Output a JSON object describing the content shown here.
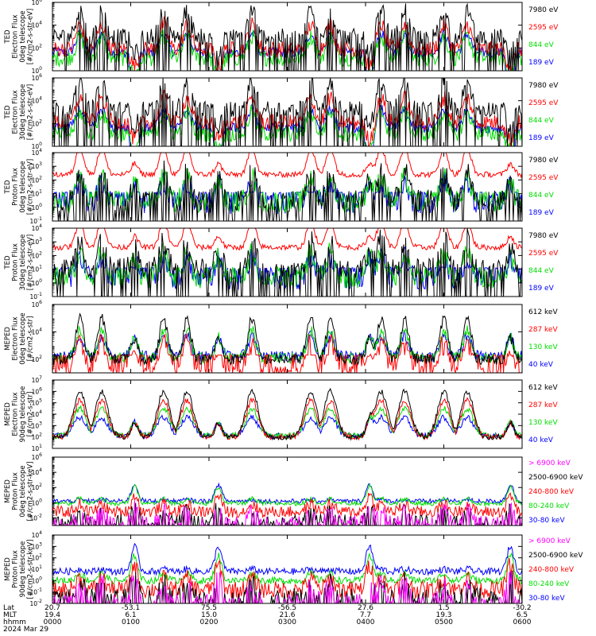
{
  "chart_data": {
    "type": "line",
    "time_axis": {
      "row_labels": [
        "Lat",
        "MLT",
        "hhmm"
      ],
      "date": "2024 Mar 29",
      "ticks": [
        {
          "lat": "20.7",
          "mlt": "19.4",
          "hhmm": "0000"
        },
        {
          "lat": "-53.1",
          "mlt": "6.1",
          "hhmm": "0100"
        },
        {
          "lat": "75.5",
          "mlt": "15.0",
          "hhmm": "0200"
        },
        {
          "lat": "-56.5",
          "mlt": "21.6",
          "hhmm": "0300"
        },
        {
          "lat": "27.6",
          "mlt": "7.7",
          "hhmm": "0400"
        },
        {
          "lat": "1.5",
          "mlt": "19.3",
          "hhmm": "0500"
        },
        {
          "lat": "-30.2",
          "mlt": "6.5",
          "hhmm": "0600"
        }
      ]
    },
    "panels": [
      {
        "ylabel": [
          "TED",
          "Electron Flux",
          "0deg telescope",
          "[#/cm2-s-str-eV]"
        ],
        "ylim_exp": [
          0,
          6
        ],
        "tick_exps": [
          0,
          2,
          4,
          6
        ],
        "legend": [
          {
            "label": "7980 eV",
            "color": "#000000"
          },
          {
            "label": "2595 eV",
            "color": "#ff0000"
          },
          {
            "label": "844 eV",
            "color": "#00dd00"
          },
          {
            "label": "189 eV",
            "color": "#0000ff"
          }
        ],
        "base": [
          2.7,
          1.6,
          0.8,
          0.4
        ]
      },
      {
        "ylabel": [
          "TED",
          "Electron Flux",
          "30deg telescope",
          "[#/cm2-s-str-eV]"
        ],
        "ylim_exp": [
          0,
          6
        ],
        "tick_exps": [
          0,
          2,
          4,
          6
        ],
        "legend": [
          {
            "label": "7980 eV",
            "color": "#000000"
          },
          {
            "label": "2595 eV",
            "color": "#ff0000"
          },
          {
            "label": "844 eV",
            "color": "#00dd00"
          },
          {
            "label": "189 eV",
            "color": "#0000ff"
          }
        ],
        "base": [
          3.0,
          1.8,
          0.8,
          0.4
        ]
      },
      {
        "ylabel": [
          "TED",
          "Proton Flux",
          "0deg telescope",
          "[#/cm2-s-str-eV]"
        ],
        "ylim_exp": [
          -1,
          4
        ],
        "tick_exps": [
          -1,
          0,
          1,
          2,
          3,
          4
        ],
        "legend": [
          {
            "label": "7980 eV",
            "color": "#000000"
          },
          {
            "label": "2595 eV",
            "color": "#ff0000"
          },
          {
            "label": "844 eV",
            "color": "#00dd00"
          },
          {
            "label": "189 eV",
            "color": "#0000ff"
          }
        ],
        "base": [
          0.5,
          2.4,
          0.4,
          0.3
        ]
      },
      {
        "ylabel": [
          "TED",
          "Proton Flux",
          "30deg telescope",
          "[#/cm2-s-str-eV]"
        ],
        "ylim_exp": [
          -1,
          4
        ],
        "tick_exps": [
          -1,
          0,
          1,
          2,
          3,
          4
        ],
        "legend": [
          {
            "label": "7980 eV",
            "color": "#000000"
          },
          {
            "label": "2595 eV",
            "color": "#ff0000"
          },
          {
            "label": "844 eV",
            "color": "#00dd00"
          },
          {
            "label": "189 eV",
            "color": "#0000ff"
          }
        ],
        "base": [
          1.0,
          2.6,
          0.4,
          0.3
        ]
      },
      {
        "ylabel": [
          "MEPED",
          "Electron Flux",
          "0deg telescope",
          "[#/cm2-s-str]"
        ],
        "ylim_exp": [
          1,
          6
        ],
        "tick_exps": [
          2,
          4,
          6
        ],
        "legend": [
          {
            "label": "612 keV",
            "color": "#000000"
          },
          {
            "label": "287 keV",
            "color": "#ff0000"
          },
          {
            "label": "130 keV",
            "color": "#00dd00"
          },
          {
            "label": "40 keV",
            "color": "#0000ff"
          }
        ],
        "base": [
          2.0,
          1.1,
          2.1,
          2.2
        ]
      },
      {
        "ylabel": [
          "MEPED",
          "Electron Flux",
          "90deg telescope",
          "[#/cm2-s-str]"
        ],
        "ylim_exp": [
          1,
          7
        ],
        "tick_exps": [
          1,
          2,
          3,
          4,
          5,
          6,
          7
        ],
        "legend": [
          {
            "label": "612 keV",
            "color": "#000000"
          },
          {
            "label": "287 keV",
            "color": "#ff0000"
          },
          {
            "label": "130 keV",
            "color": "#00dd00"
          },
          {
            "label": "40 keV",
            "color": "#0000ff"
          }
        ],
        "base": [
          2.0,
          2.0,
          2.1,
          2.1
        ]
      },
      {
        "ylabel": [
          "MEPED",
          "Proton Flux",
          "0deg telescope",
          "[#/cm2-s-str-keV]"
        ],
        "ylim_exp": [
          -3,
          6
        ],
        "tick_exps": [
          -2,
          0,
          2,
          4,
          6
        ],
        "legend": [
          {
            "label": "> 6900 keV",
            "color": "#ff00ff"
          },
          {
            "label": "2500-6900 keV",
            "color": "#000000"
          },
          {
            "label": "240-800 keV",
            "color": "#ff0000"
          },
          {
            "label": "80-240 keV",
            "color": "#00dd00"
          },
          {
            "label": "30-80 keV",
            "color": "#0000ff"
          }
        ],
        "base": [
          -2.5,
          -2.3,
          -1.2,
          -0.1,
          0.2
        ]
      },
      {
        "ylabel": [
          "MEPED",
          "Proton Flux",
          "90deg telescope",
          "[#/cm2-s-str-keV]"
        ],
        "ylim_exp": [
          -2,
          4
        ],
        "tick_exps": [
          -2,
          -1,
          0,
          1,
          2,
          3,
          4
        ],
        "legend": [
          {
            "label": "> 6900 keV",
            "color": "#ff00ff"
          },
          {
            "label": "2500-6900 keV",
            "color": "#000000"
          },
          {
            "label": "240-800 keV",
            "color": "#ff0000"
          },
          {
            "label": "80-240 keV",
            "color": "#00dd00"
          },
          {
            "label": "30-80 keV",
            "color": "#0000ff"
          }
        ],
        "base": [
          -1.9,
          -1.4,
          -0.8,
          0.0,
          0.8
        ]
      }
    ],
    "pass_centers_hours": [
      0.35,
      0.63,
      1.42,
      1.72,
      2.55,
      3.3,
      3.55,
      4.2,
      4.5,
      5.0,
      5.3
    ],
    "polar_crossing_hours": [
      1.05,
      2.12,
      4.05,
      5.85
    ]
  }
}
